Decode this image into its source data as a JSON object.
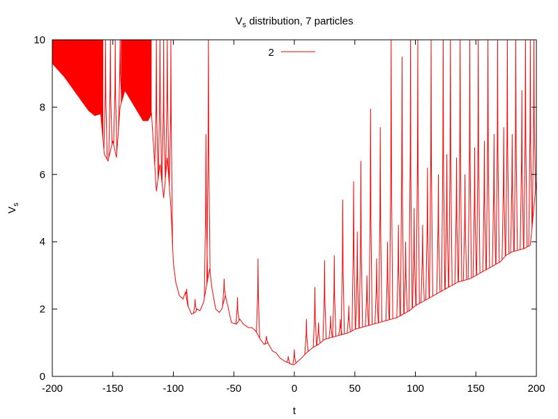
{
  "chart_data": {
    "type": "line",
    "title_main": "V",
    "title_sub": "s",
    "title_rest": " distribution, 7 particles",
    "xlabel": "t",
    "ylabel_main": "V",
    "ylabel_sub": "s",
    "xlim": [
      -200,
      200
    ],
    "ylim": [
      0,
      10
    ],
    "xticks": [
      -200,
      -150,
      -100,
      -50,
      0,
      50,
      100,
      150,
      200
    ],
    "yticks": [
      0,
      2,
      4,
      6,
      8,
      10
    ],
    "x_tick_labels": [
      "-200",
      "-150",
      "-100",
      "-50",
      "0",
      "50",
      "100",
      "150",
      "200"
    ],
    "y_tick_labels": [
      "0",
      "2",
      "4",
      "6",
      "8",
      "10"
    ],
    "grid": false,
    "legend_position": "top-center",
    "series": [
      {
        "name": "2",
        "color": "#ff0000",
        "baseline": [
          [
            -200,
            9.3
          ],
          [
            -190,
            8.9
          ],
          [
            -180,
            8.4
          ],
          [
            -170,
            7.9
          ],
          [
            -165,
            7.75
          ],
          [
            -160,
            7.8
          ],
          [
            -157,
            6.6
          ],
          [
            -154,
            6.4
          ],
          [
            -150,
            7.0
          ],
          [
            -147,
            6.5
          ],
          [
            -144,
            8.0
          ],
          [
            -140,
            8.5
          ],
          [
            -135,
            8.2
          ],
          [
            -130,
            7.9
          ],
          [
            -125,
            7.6
          ],
          [
            -121,
            7.6
          ],
          [
            -118,
            7.8
          ],
          [
            -114,
            5.5
          ],
          [
            -111,
            6.3
          ],
          [
            -108,
            5.3
          ],
          [
            -105,
            6.5
          ],
          [
            -102,
            5.0
          ],
          [
            -100,
            3.4
          ],
          [
            -98,
            2.8
          ],
          [
            -95,
            2.4
          ],
          [
            -92,
            2.3
          ],
          [
            -90,
            2.5
          ],
          [
            -88,
            2.1
          ],
          [
            -85,
            1.85
          ],
          [
            -82,
            1.9
          ],
          [
            -80,
            2.0
          ],
          [
            -78,
            1.95
          ],
          [
            -75,
            2.2
          ],
          [
            -72,
            2.8
          ],
          [
            -70,
            3.2
          ],
          [
            -68,
            2.6
          ],
          [
            -65,
            2.0
          ],
          [
            -62,
            1.9
          ],
          [
            -60,
            2.0
          ],
          [
            -57,
            2.4
          ],
          [
            -55,
            2.1
          ],
          [
            -52,
            1.6
          ],
          [
            -48,
            1.55
          ],
          [
            -45,
            1.7
          ],
          [
            -42,
            1.55
          ],
          [
            -38,
            1.45
          ],
          [
            -35,
            1.45
          ],
          [
            -32,
            1.35
          ],
          [
            -28,
            1.1
          ],
          [
            -25,
            0.95
          ],
          [
            -22,
            1.0
          ],
          [
            -18,
            0.75
          ],
          [
            -15,
            0.7
          ],
          [
            -12,
            0.55
          ],
          [
            -8,
            0.45
          ],
          [
            -5,
            0.4
          ],
          [
            -2,
            0.35
          ],
          [
            0,
            0.35
          ],
          [
            3,
            0.45
          ],
          [
            6,
            0.55
          ],
          [
            10,
            0.7
          ],
          [
            15,
            0.85
          ],
          [
            20,
            0.95
          ],
          [
            25,
            1.1
          ],
          [
            30,
            1.15
          ],
          [
            35,
            1.2
          ],
          [
            40,
            1.25
          ],
          [
            45,
            1.3
          ],
          [
            50,
            1.4
          ],
          [
            55,
            1.45
          ],
          [
            60,
            1.5
          ],
          [
            65,
            1.55
          ],
          [
            70,
            1.6
          ],
          [
            75,
            1.65
          ],
          [
            80,
            1.7
          ],
          [
            85,
            1.75
          ],
          [
            90,
            1.85
          ],
          [
            95,
            1.95
          ],
          [
            100,
            2.1
          ],
          [
            105,
            2.2
          ],
          [
            110,
            2.3
          ],
          [
            115,
            2.4
          ],
          [
            120,
            2.5
          ],
          [
            125,
            2.6
          ],
          [
            130,
            2.7
          ],
          [
            135,
            2.8
          ],
          [
            140,
            2.85
          ],
          [
            145,
            2.9
          ],
          [
            150,
            3.0
          ],
          [
            155,
            3.1
          ],
          [
            160,
            3.2
          ],
          [
            165,
            3.3
          ],
          [
            170,
            3.4
          ],
          [
            175,
            3.6
          ],
          [
            180,
            3.7
          ],
          [
            185,
            3.75
          ],
          [
            190,
            3.8
          ],
          [
            195,
            3.9
          ],
          [
            200,
            5.8
          ]
        ],
        "spikes": [
          [
            -156,
            10
          ],
          [
            -152,
            10
          ],
          [
            -148,
            10
          ],
          [
            -144,
            10
          ],
          [
            -114,
            10
          ],
          [
            -111,
            10
          ],
          [
            -108,
            10
          ],
          [
            -105,
            10
          ],
          [
            -102,
            10
          ],
          [
            -89,
            2.6
          ],
          [
            -82,
            2.3
          ],
          [
            -73,
            7.2
          ],
          [
            -71,
            10
          ],
          [
            -58,
            2.9
          ],
          [
            -47,
            2.35
          ],
          [
            -30,
            3.5
          ],
          [
            -23,
            1.2
          ],
          [
            -5,
            0.6
          ],
          [
            0,
            0.8
          ],
          [
            10,
            1.7
          ],
          [
            17,
            2.65
          ],
          [
            20,
            1.6
          ],
          [
            25,
            3.45
          ],
          [
            30,
            1.8
          ],
          [
            33,
            3.6
          ],
          [
            38,
            1.7
          ],
          [
            40,
            5.25
          ],
          [
            45,
            2.1
          ],
          [
            49,
            5.8
          ],
          [
            52,
            4.3
          ],
          [
            55,
            6.4
          ],
          [
            60,
            3.0
          ],
          [
            63,
            7.95
          ],
          [
            68,
            3.5
          ],
          [
            71,
            7.4
          ],
          [
            77,
            4.0
          ],
          [
            80,
            10
          ],
          [
            86,
            4.5
          ],
          [
            89,
            9.5
          ],
          [
            92,
            4.0
          ],
          [
            96,
            10
          ],
          [
            99,
            5.0
          ],
          [
            102,
            10
          ],
          [
            106,
            4.5
          ],
          [
            110,
            6.2
          ],
          [
            113,
            10
          ],
          [
            119,
            6.0
          ],
          [
            123,
            10
          ],
          [
            126,
            6.6
          ],
          [
            129,
            10
          ],
          [
            134,
            6.5
          ],
          [
            137,
            10
          ],
          [
            141,
            6.0
          ],
          [
            145,
            10
          ],
          [
            149,
            6.8
          ],
          [
            152,
            10
          ],
          [
            157,
            7.0
          ],
          [
            160,
            10
          ],
          [
            165,
            7.2
          ],
          [
            168,
            10
          ],
          [
            173,
            7.4
          ],
          [
            176,
            10
          ],
          [
            180,
            7.2
          ],
          [
            183,
            10
          ],
          [
            188,
            8.5
          ],
          [
            191,
            10
          ],
          [
            195,
            10
          ],
          [
            198,
            10
          ]
        ],
        "oscillation_bands": [
          {
            "x_start": -200,
            "x_end": -158,
            "upper": 10
          },
          {
            "x_start": -143,
            "x_end": -118,
            "upper": 10
          }
        ]
      }
    ]
  }
}
